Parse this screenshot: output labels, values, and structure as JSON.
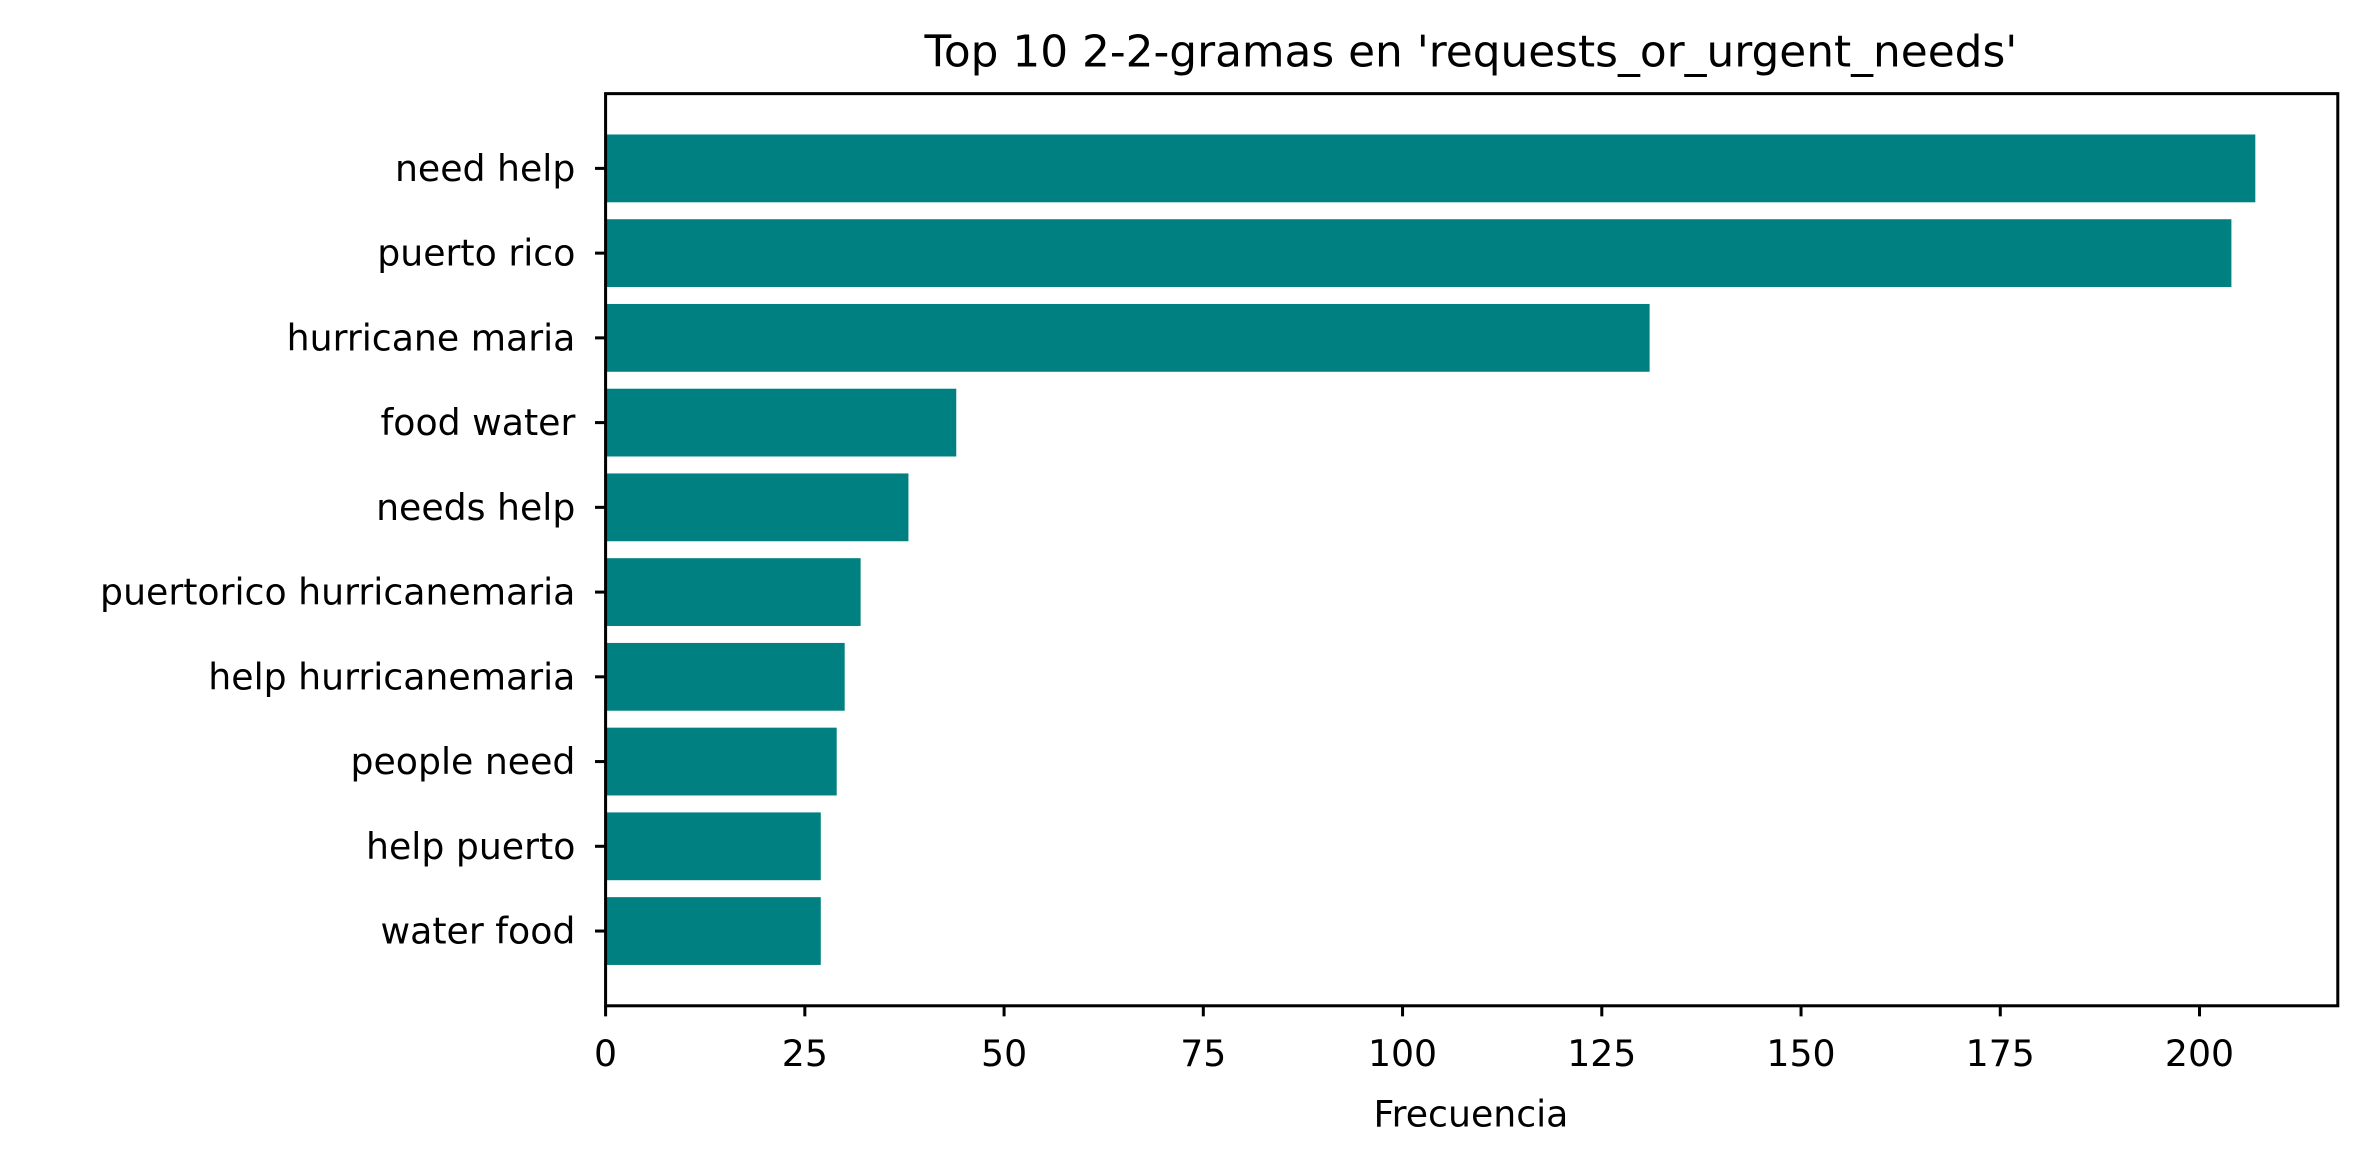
{
  "chart_data": {
    "type": "bar",
    "orientation": "horizontal",
    "title": "Top 10 2-2-gramas en 'requests_or_urgent_needs'",
    "xlabel": "Frecuencia",
    "ylabel": "",
    "categories": [
      "need help",
      "puerto rico",
      "hurricane maria",
      "food water",
      "needs help",
      "puertorico hurricanemaria",
      "help hurricanemaria",
      "people need",
      "help puerto",
      "water food"
    ],
    "values": [
      207,
      204,
      131,
      44,
      38,
      32,
      30,
      29,
      27,
      27
    ],
    "xlim": [
      0,
      217.35
    ],
    "xticks": [
      0,
      25,
      50,
      75,
      100,
      125,
      150,
      175,
      200
    ],
    "bar_color": "#008080",
    "grid": false,
    "legend": "none"
  }
}
